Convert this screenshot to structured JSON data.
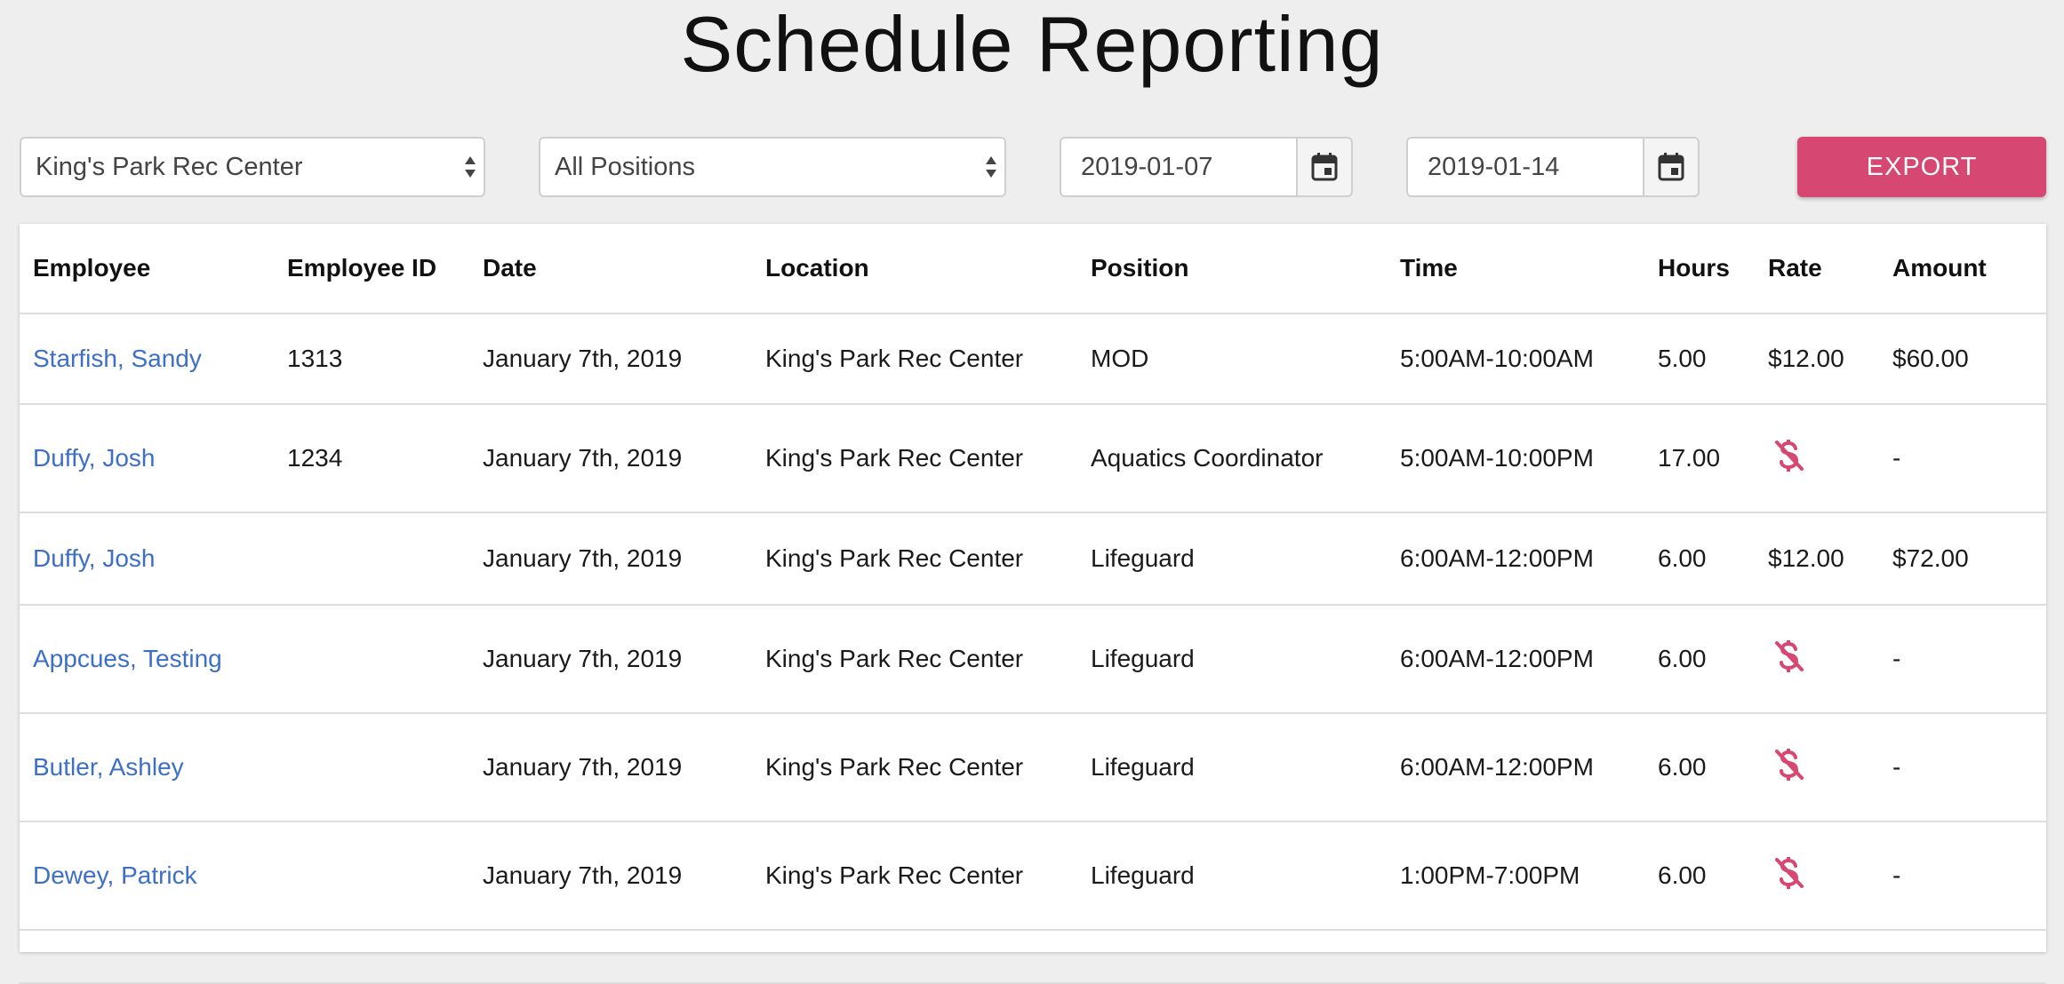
{
  "page": {
    "title": "Schedule Reporting"
  },
  "filters": {
    "location": "King's Park Rec Center",
    "position": "All Positions",
    "start_date": "2019-01-07",
    "end_date": "2019-01-14",
    "export_label": "EXPORT"
  },
  "colors": {
    "accent": "#d64872",
    "link": "#3d6fc9"
  },
  "table": {
    "columns": [
      "Employee",
      "Employee ID",
      "Date",
      "Location",
      "Position",
      "Time",
      "Hours",
      "Rate",
      "Amount"
    ],
    "rows": [
      {
        "employee": "Starfish, Sandy",
        "employee_id": "1313",
        "date": "January 7th, 2019",
        "location": "King's Park Rec Center",
        "position": "MOD",
        "time": "5:00AM-10:00AM",
        "hours": "5.00",
        "rate": "$12.00",
        "amount": "$60.00"
      },
      {
        "employee": "Duffy, Josh",
        "employee_id": "1234",
        "date": "January 7th, 2019",
        "location": "King's Park Rec Center",
        "position": "Aquatics Coordinator",
        "time": "5:00AM-10:00PM",
        "hours": "17.00",
        "rate": null,
        "rate_icon": "no-dollar-icon",
        "amount": "-"
      },
      {
        "employee": "Duffy, Josh",
        "employee_id": "",
        "date": "January 7th, 2019",
        "location": "King's Park Rec Center",
        "position": "Lifeguard",
        "time": "6:00AM-12:00PM",
        "hours": "6.00",
        "rate": "$12.00",
        "amount": "$72.00"
      },
      {
        "employee": "Appcues, Testing",
        "employee_id": "",
        "date": "January 7th, 2019",
        "location": "King's Park Rec Center",
        "position": "Lifeguard",
        "time": "6:00AM-12:00PM",
        "hours": "6.00",
        "rate": null,
        "rate_icon": "no-dollar-icon",
        "amount": "-"
      },
      {
        "employee": "Butler, Ashley",
        "employee_id": "",
        "date": "January 7th, 2019",
        "location": "King's Park Rec Center",
        "position": "Lifeguard",
        "time": "6:00AM-12:00PM",
        "hours": "6.00",
        "rate": null,
        "rate_icon": "no-dollar-icon",
        "amount": "-"
      },
      {
        "employee": "Dewey, Patrick",
        "employee_id": "",
        "date": "January 7th, 2019",
        "location": "King's Park Rec Center",
        "position": "Lifeguard",
        "time": "1:00PM-7:00PM",
        "hours": "6.00",
        "rate": null,
        "rate_icon": "no-dollar-icon",
        "amount": "-"
      },
      {
        "employee": "",
        "employee_id": "",
        "date": "",
        "location": "",
        "position": "",
        "time": "",
        "hours": "",
        "rate": "",
        "amount": ""
      }
    ]
  }
}
